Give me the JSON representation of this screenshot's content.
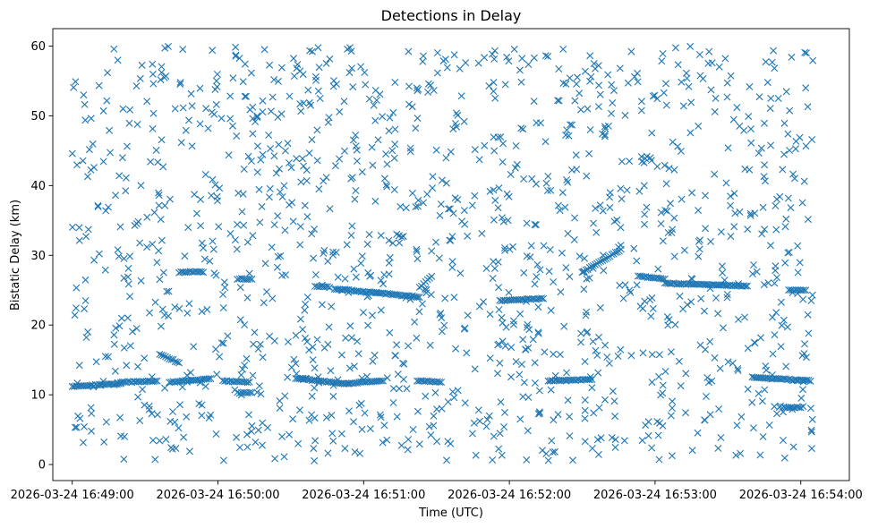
{
  "chart_data": {
    "type": "scatter",
    "title": "Detections in Delay",
    "xlabel": "Time (UTC)",
    "ylabel": "Bistatic Delay (km)",
    "x_axis": {
      "type": "time",
      "range": [
        "2026-03-24 16:48:52",
        "2026-03-24 16:54:20"
      ],
      "tick_values": [
        "2026-03-24 16:49:00",
        "2026-03-24 16:50:00",
        "2026-03-24 16:51:00",
        "2026-03-24 16:52:00",
        "2026-03-24 16:53:00",
        "2026-03-24 16:54:00"
      ],
      "tick_labels": [
        "2026-03-24 16:49:00",
        "2026-03-24 16:50:00",
        "2026-03-24 16:51:00",
        "2026-03-24 16:52:00",
        "2026-03-24 16:53:00",
        "2026-03-24 16:54:00"
      ]
    },
    "y_axis": {
      "range": [
        -2.3,
        62.5
      ],
      "tick_values": [
        0,
        10,
        20,
        30,
        40,
        50,
        60
      ],
      "tick_labels": [
        "0",
        "10",
        "20",
        "30",
        "40",
        "50",
        "60"
      ]
    },
    "marker": "x",
    "color": "#1f77b4",
    "grid": false,
    "legend": false,
    "tracks": [
      {
        "start": "2026-03-24 16:49:00",
        "end": "2026-03-24 16:49:20",
        "delay_start": 11.2,
        "delay_end": 11.6
      },
      {
        "start": "2026-03-24 16:49:20",
        "end": "2026-03-24 16:49:35",
        "delay_start": 11.8,
        "delay_end": 12.0
      },
      {
        "start": "2026-03-24 16:49:36",
        "end": "2026-03-24 16:49:44",
        "delay_start": 15.8,
        "delay_end": 14.6
      },
      {
        "start": "2026-03-24 16:49:40",
        "end": "2026-03-24 16:49:57",
        "delay_start": 11.8,
        "delay_end": 12.3
      },
      {
        "start": "2026-03-24 16:49:44",
        "end": "2026-03-24 16:49:54",
        "delay_start": 27.6,
        "delay_end": 27.6
      },
      {
        "start": "2026-03-24 16:50:02",
        "end": "2026-03-24 16:50:13",
        "delay_start": 12.0,
        "delay_end": 11.8
      },
      {
        "start": "2026-03-24 16:50:08",
        "end": "2026-03-24 16:50:14",
        "delay_start": 26.6,
        "delay_end": 26.6
      },
      {
        "start": "2026-03-24 16:50:08",
        "end": "2026-03-24 16:50:14",
        "delay_start": 10.3,
        "delay_end": 10.3
      },
      {
        "start": "2026-03-24 16:50:32",
        "end": "2026-03-24 16:50:52",
        "delay_start": 12.4,
        "delay_end": 11.6
      },
      {
        "start": "2026-03-24 16:50:52",
        "end": "2026-03-24 16:51:08",
        "delay_start": 11.6,
        "delay_end": 12.0
      },
      {
        "start": "2026-03-24 16:50:40",
        "end": "2026-03-24 16:50:46",
        "delay_start": 25.6,
        "delay_end": 25.4
      },
      {
        "start": "2026-03-24 16:50:48",
        "end": "2026-03-24 16:51:23",
        "delay_start": 25.2,
        "delay_end": 24.0
      },
      {
        "start": "2026-03-24 16:51:23",
        "end": "2026-03-24 16:51:28",
        "delay_start": 25.4,
        "delay_end": 27.0
      },
      {
        "start": "2026-03-24 16:51:22",
        "end": "2026-03-24 16:51:32",
        "delay_start": 12.0,
        "delay_end": 11.8
      },
      {
        "start": "2026-03-24 16:51:56",
        "end": "2026-03-24 16:52:14",
        "delay_start": 23.5,
        "delay_end": 23.8
      },
      {
        "start": "2026-03-24 16:52:16",
        "end": "2026-03-24 16:52:34",
        "delay_start": 12.0,
        "delay_end": 12.2
      },
      {
        "start": "2026-03-24 16:52:30",
        "end": "2026-03-24 16:52:46",
        "delay_start": 27.6,
        "delay_end": 30.8
      },
      {
        "start": "2026-03-24 16:52:53",
        "end": "2026-03-24 16:53:04",
        "delay_start": 27.0,
        "delay_end": 26.6
      },
      {
        "start": "2026-03-24 16:53:04",
        "end": "2026-03-24 16:53:38",
        "delay_start": 26.0,
        "delay_end": 25.6
      },
      {
        "start": "2026-03-24 16:53:40",
        "end": "2026-03-24 16:54:04",
        "delay_start": 12.5,
        "delay_end": 12.0
      },
      {
        "start": "2026-03-24 16:53:53",
        "end": "2026-03-24 16:54:00",
        "delay_start": 8.2,
        "delay_end": 8.2
      },
      {
        "start": "2026-03-24 16:53:55",
        "end": "2026-03-24 16:54:02",
        "delay_start": 25.0,
        "delay_end": 25.0
      }
    ],
    "clutter": {
      "x_range": [
        "2026-03-24 16:49:00",
        "2026-03-24 16:54:05"
      ],
      "y_range": [
        0.5,
        60.0
      ],
      "approximate_count": 1350
    }
  }
}
